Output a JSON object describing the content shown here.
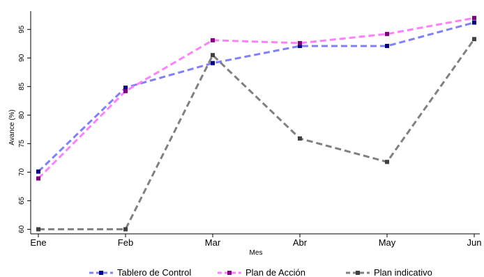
{
  "chart_data": {
    "type": "line",
    "categories": [
      "Ene",
      "Feb",
      "Mar",
      "Abr",
      "May",
      "Jun"
    ],
    "xlabel": "Mes",
    "ylabel": "Avance (%)",
    "ylim": [
      59.2,
      98.2
    ],
    "yticks": [
      60,
      65,
      70,
      75,
      80,
      85,
      90,
      95
    ],
    "grid": false,
    "legend_position": "bottom",
    "series": [
      {
        "name": "Tablero de Control",
        "line_color": "#7f7fff",
        "marker_color": "#000080",
        "values": [
          70.1,
          84.8,
          89.1,
          92.1,
          92.1,
          96.2
        ]
      },
      {
        "name": "Plan de Acción",
        "line_color": "#ff80ff",
        "marker_color": "#800080",
        "values": [
          68.9,
          84.2,
          93.1,
          92.6,
          94.2,
          97.0
        ]
      },
      {
        "name": "Plan indicativo",
        "line_color": "#808080",
        "marker_color": "#404040",
        "values": [
          60.0,
          60.0,
          90.5,
          75.9,
          71.8,
          93.3
        ]
      }
    ]
  }
}
